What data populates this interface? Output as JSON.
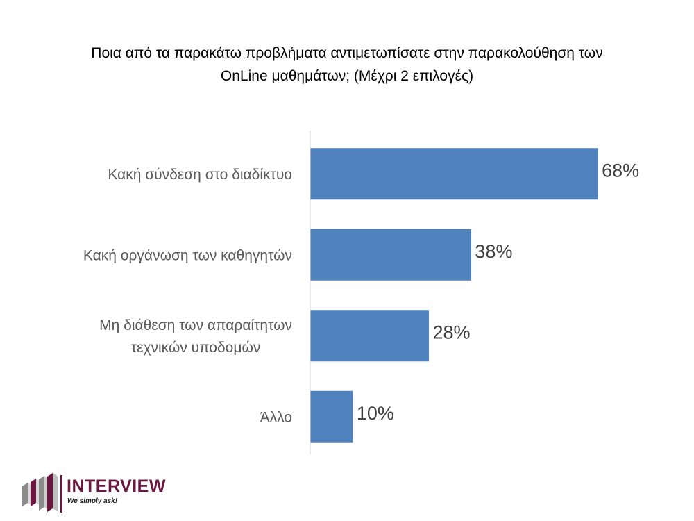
{
  "chart_data": {
    "type": "bar",
    "orientation": "horizontal",
    "title_lines": [
      "Ποια από τα παρακάτω προβλήματα αντιμετωπίσατε στην παρακολούθηση των",
      "OnLine μαθημάτων; (Μέχρι 2 επιλογές)"
    ],
    "categories": [
      [
        "Κακή σύνδεση στο διαδίκτυο"
      ],
      [
        "Κακή οργάνωση των καθηγητών"
      ],
      [
        "Μη διάθεση των απαραίτητων",
        "τεχνικών υποδομών"
      ],
      [
        "Άλλο"
      ]
    ],
    "values": [
      68,
      38,
      28,
      10
    ],
    "data_labels": [
      "68%",
      "38%",
      "28%",
      "10%"
    ],
    "xlim": [
      0,
      100
    ],
    "grid": false,
    "legend": "none",
    "bar_color": "#4f81bd"
  },
  "logo": {
    "name": "INTERVIEW",
    "tagline": "We simply ask!",
    "colors": {
      "primary": "#6b1740",
      "bars": [
        "#6b1740",
        "#8c8c8c",
        "#d9d9d9"
      ]
    }
  }
}
